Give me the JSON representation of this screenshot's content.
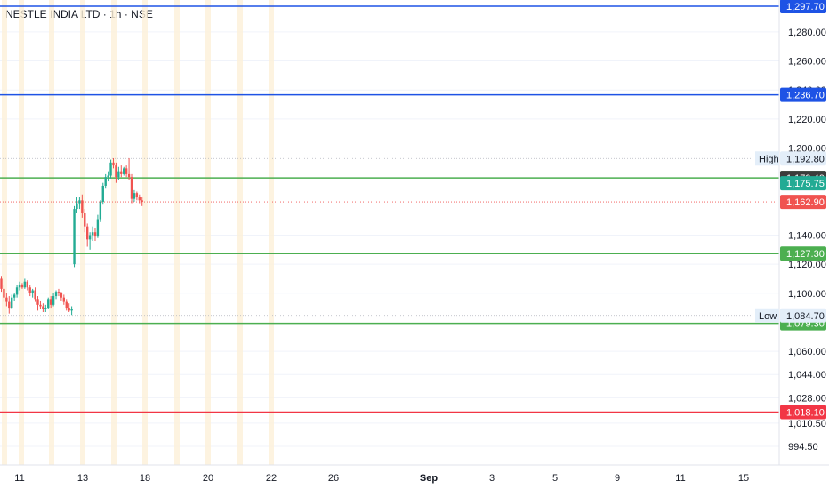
{
  "header": {
    "title": "NESTLE INDIA LTD · 1h · NSE"
  },
  "chart_data": {
    "type": "candlestick",
    "ylim": [
      988,
      1302
    ],
    "x_ticks": [
      {
        "label": "11",
        "bold": false
      },
      {
        "label": "13",
        "bold": false
      },
      {
        "label": "18",
        "bold": false
      },
      {
        "label": "20",
        "bold": false
      },
      {
        "label": "22",
        "bold": false
      },
      {
        "label": "26",
        "bold": false
      },
      {
        "label": "Sep",
        "bold": true
      },
      {
        "label": "3",
        "bold": false
      },
      {
        "label": "5",
        "bold": false
      },
      {
        "label": "9",
        "bold": false
      },
      {
        "label": "11",
        "bold": false
      },
      {
        "label": "15",
        "bold": false
      }
    ],
    "y_ticks": [
      "1,280.00",
      "1,260.00",
      "1,240.00",
      "1,220.00",
      "1,200.00",
      "1,140.00",
      "1,120.00",
      "1,100.00",
      "1,060.00",
      "1,044.00",
      "1,028.00",
      "1,010.50",
      "994.50"
    ],
    "y_tick_values": [
      1280,
      1260,
      1240,
      1220,
      1200,
      1140,
      1120,
      1100,
      1060,
      1044,
      1028,
      1010.5,
      994.5
    ],
    "levels": [
      {
        "value": 1297.7,
        "label": "1,297.70",
        "color": "#1e53e5",
        "style": "solid"
      },
      {
        "value": 1236.7,
        "label": "1,236.70",
        "color": "#1e53e5",
        "style": "solid"
      },
      {
        "value": 1179.4,
        "label": "1,179.40",
        "color": "#4caf50",
        "style": "solid"
      },
      {
        "value": 1127.3,
        "label": "1,127.30",
        "color": "#4caf50",
        "style": "solid"
      },
      {
        "value": 1079.3,
        "label": "1,079.30",
        "color": "#4caf50",
        "style": "solid"
      },
      {
        "value": 1018.1,
        "label": "1,018.10",
        "color": "#f23645",
        "style": "solid"
      }
    ],
    "markers": [
      {
        "value": 1192.8,
        "label": "1,192.80",
        "tag": "High",
        "color": "#e3eef9",
        "text_color": "#131722"
      },
      {
        "value": 1084.7,
        "label": "1,084.70",
        "tag": "Low",
        "color": "#e3eef9",
        "text_color": "#131722"
      },
      {
        "value": 1179.4,
        "label": "1,179.40",
        "tag": "",
        "color": "#3c3c3c",
        "text_color": "#ffffff"
      },
      {
        "value": 1175.75,
        "label": "1,175.75",
        "tag": "",
        "color": "#22ab94",
        "text_color": "#ffffff"
      },
      {
        "value": 1162.9,
        "label": "1,162.90",
        "tag": "",
        "color": "#f05350",
        "text_color": "#ffffff"
      }
    ],
    "price_line": {
      "value": 1162.9,
      "color": "#f05350"
    },
    "colors": {
      "up": "#22ab94",
      "down": "#f05350",
      "highlight_band": "#fdf0d8"
    },
    "series": [
      {
        "o": 1110,
        "h": 1112,
        "l": 1101,
        "c": 1103
      },
      {
        "o": 1103,
        "h": 1106,
        "l": 1094,
        "c": 1097
      },
      {
        "o": 1097,
        "h": 1100,
        "l": 1091,
        "c": 1094
      },
      {
        "o": 1094,
        "h": 1098,
        "l": 1086,
        "c": 1090
      },
      {
        "o": 1090,
        "h": 1099,
        "l": 1089,
        "c": 1097
      },
      {
        "o": 1097,
        "h": 1100,
        "l": 1095,
        "c": 1099
      },
      {
        "o": 1099,
        "h": 1106,
        "l": 1097,
        "c": 1104
      },
      {
        "o": 1104,
        "h": 1108,
        "l": 1102,
        "c": 1106
      },
      {
        "o": 1106,
        "h": 1107,
        "l": 1103,
        "c": 1104
      },
      {
        "o": 1104,
        "h": 1110,
        "l": 1103,
        "c": 1108
      },
      {
        "o": 1108,
        "h": 1109,
        "l": 1102,
        "c": 1104
      },
      {
        "o": 1104,
        "h": 1106,
        "l": 1098,
        "c": 1100
      },
      {
        "o": 1100,
        "h": 1103,
        "l": 1097,
        "c": 1102
      },
      {
        "o": 1102,
        "h": 1104,
        "l": 1094,
        "c": 1096
      },
      {
        "o": 1096,
        "h": 1098,
        "l": 1088,
        "c": 1092
      },
      {
        "o": 1092,
        "h": 1095,
        "l": 1089,
        "c": 1091
      },
      {
        "o": 1091,
        "h": 1093,
        "l": 1087,
        "c": 1089
      },
      {
        "o": 1089,
        "h": 1092,
        "l": 1087,
        "c": 1090
      },
      {
        "o": 1090,
        "h": 1097,
        "l": 1089,
        "c": 1096
      },
      {
        "o": 1096,
        "h": 1098,
        "l": 1090,
        "c": 1092
      },
      {
        "o": 1092,
        "h": 1100,
        "l": 1091,
        "c": 1098
      },
      {
        "o": 1098,
        "h": 1102,
        "l": 1096,
        "c": 1101
      },
      {
        "o": 1101,
        "h": 1103,
        "l": 1098,
        "c": 1100
      },
      {
        "o": 1100,
        "h": 1101,
        "l": 1095,
        "c": 1097
      },
      {
        "o": 1097,
        "h": 1099,
        "l": 1092,
        "c": 1094
      },
      {
        "o": 1094,
        "h": 1096,
        "l": 1088,
        "c": 1090
      },
      {
        "o": 1090,
        "h": 1093,
        "l": 1087,
        "c": 1088
      },
      {
        "o": 1088,
        "h": 1091,
        "l": 1085,
        "c": 1089
      },
      {
        "o": 1120,
        "h": 1160,
        "l": 1118,
        "c": 1158
      },
      {
        "o": 1158,
        "h": 1166,
        "l": 1155,
        "c": 1162
      },
      {
        "o": 1162,
        "h": 1166,
        "l": 1158,
        "c": 1164
      },
      {
        "o": 1164,
        "h": 1168,
        "l": 1152,
        "c": 1155
      },
      {
        "o": 1155,
        "h": 1158,
        "l": 1142,
        "c": 1146
      },
      {
        "o": 1146,
        "h": 1148,
        "l": 1132,
        "c": 1137
      },
      {
        "o": 1137,
        "h": 1142,
        "l": 1130,
        "c": 1140
      },
      {
        "o": 1140,
        "h": 1146,
        "l": 1136,
        "c": 1142
      },
      {
        "o": 1142,
        "h": 1145,
        "l": 1136,
        "c": 1139
      },
      {
        "o": 1139,
        "h": 1154,
        "l": 1138,
        "c": 1151
      },
      {
        "o": 1151,
        "h": 1164,
        "l": 1149,
        "c": 1163
      },
      {
        "o": 1163,
        "h": 1176,
        "l": 1161,
        "c": 1174
      },
      {
        "o": 1174,
        "h": 1182,
        "l": 1172,
        "c": 1180
      },
      {
        "o": 1180,
        "h": 1184,
        "l": 1177,
        "c": 1181
      },
      {
        "o": 1181,
        "h": 1192,
        "l": 1179,
        "c": 1190
      },
      {
        "o": 1190,
        "h": 1193,
        "l": 1186,
        "c": 1188
      },
      {
        "o": 1188,
        "h": 1190,
        "l": 1176,
        "c": 1180
      },
      {
        "o": 1180,
        "h": 1187,
        "l": 1178,
        "c": 1184
      },
      {
        "o": 1184,
        "h": 1188,
        "l": 1180,
        "c": 1182
      },
      {
        "o": 1182,
        "h": 1187,
        "l": 1181,
        "c": 1186
      },
      {
        "o": 1186,
        "h": 1188,
        "l": 1180,
        "c": 1182
      },
      {
        "o": 1182,
        "h": 1193,
        "l": 1178,
        "c": 1180
      },
      {
        "o": 1180,
        "h": 1182,
        "l": 1162,
        "c": 1165
      },
      {
        "o": 1165,
        "h": 1171,
        "l": 1163,
        "c": 1169
      },
      {
        "o": 1169,
        "h": 1170,
        "l": 1164,
        "c": 1166
      },
      {
        "o": 1166,
        "h": 1168,
        "l": 1162,
        "c": 1164
      },
      {
        "o": 1164,
        "h": 1166,
        "l": 1160,
        "c": 1162.9
      }
    ]
  }
}
